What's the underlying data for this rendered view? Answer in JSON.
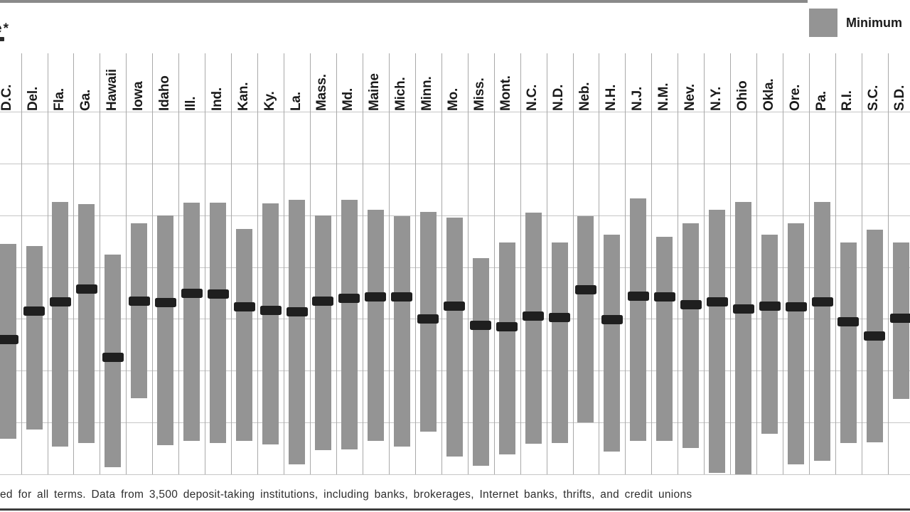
{
  "header": {
    "title_fragment": "e*"
  },
  "legend": {
    "items": [
      {
        "label": "Minimum",
        "swatch_color": "#949494"
      }
    ],
    "position": "top-right"
  },
  "footnote": {
    "text": "ed for all terms. Data from 3,500 deposit-taking institutions, including banks, brokerages, Internet banks, thrifts, and credit unions"
  },
  "colors": {
    "bar": "#949494",
    "marker": "#1f1f1f",
    "grid_horizontal": "#c6c6c6",
    "grid_vertical": "#a9a9a9",
    "top_rule": "#8a8a8a",
    "bottom_rule": "#3c3c3c"
  },
  "chart_data": {
    "type": "bar",
    "variant": "floating range bars (min-to-max) with dark average marker per state",
    "categories": [
      "D.C.",
      "Del.",
      "Fla.",
      "Ga.",
      "Hawaii",
      "Iowa",
      "Idaho",
      "Ill.",
      "Ind.",
      "Kan.",
      "Ky.",
      "La.",
      "Mass.",
      "Md.",
      "Maine",
      "Mich.",
      "Minn.",
      "Mo.",
      "Miss.",
      "Mont.",
      "N.C.",
      "N.D.",
      "Neb.",
      "N.H.",
      "N.J.",
      "N.M.",
      "Nev.",
      "N.Y.",
      "Ohio",
      "Okla.",
      "Ore.",
      "Pa.",
      "R.I.",
      "S.C.",
      "S.D."
    ],
    "series": [
      {
        "name": "range_high",
        "values": [
          4.45,
          4.41,
          5.26,
          5.21,
          4.24,
          4.84,
          5.0,
          5.25,
          5.25,
          4.74,
          5.23,
          5.3,
          4.99,
          5.3,
          5.1,
          4.98,
          5.06,
          4.95,
          4.17,
          4.47,
          5.05,
          4.47,
          4.98,
          4.63,
          5.33,
          4.59,
          4.84,
          5.11,
          5.26,
          4.63,
          4.85,
          5.26,
          4.48,
          4.72,
          4.48
        ]
      },
      {
        "name": "range_low",
        "values": [
          0.68,
          0.86,
          0.53,
          0.6,
          0.13,
          1.47,
          0.56,
          0.65,
          0.6,
          0.65,
          0.58,
          0.19,
          0.46,
          0.48,
          0.65,
          0.53,
          0.82,
          0.34,
          0.17,
          0.38,
          0.59,
          0.6,
          1.0,
          0.44,
          0.64,
          0.64,
          0.51,
          0.03,
          0.0,
          0.78,
          0.19,
          0.26,
          0.6,
          0.61,
          1.45
        ]
      },
      {
        "name": "marker",
        "values": [
          2.6,
          3.15,
          3.33,
          3.57,
          2.26,
          3.34,
          3.31,
          3.5,
          3.48,
          3.23,
          3.16,
          3.14,
          3.34,
          3.4,
          3.42,
          3.42,
          3.0,
          3.25,
          2.87,
          2.85,
          3.06,
          3.03,
          3.56,
          2.98,
          3.44,
          3.42,
          3.28,
          3.33,
          3.19,
          3.25,
          3.23,
          3.33,
          2.95,
          2.67,
          3.02
        ]
      }
    ],
    "ylim": [
      0,
      7
    ],
    "y_units": "value axis cropped out of frame; values estimated in gridline-row units",
    "grid": true,
    "legend_position": "top-right",
    "x_tick_rotation": 90
  }
}
